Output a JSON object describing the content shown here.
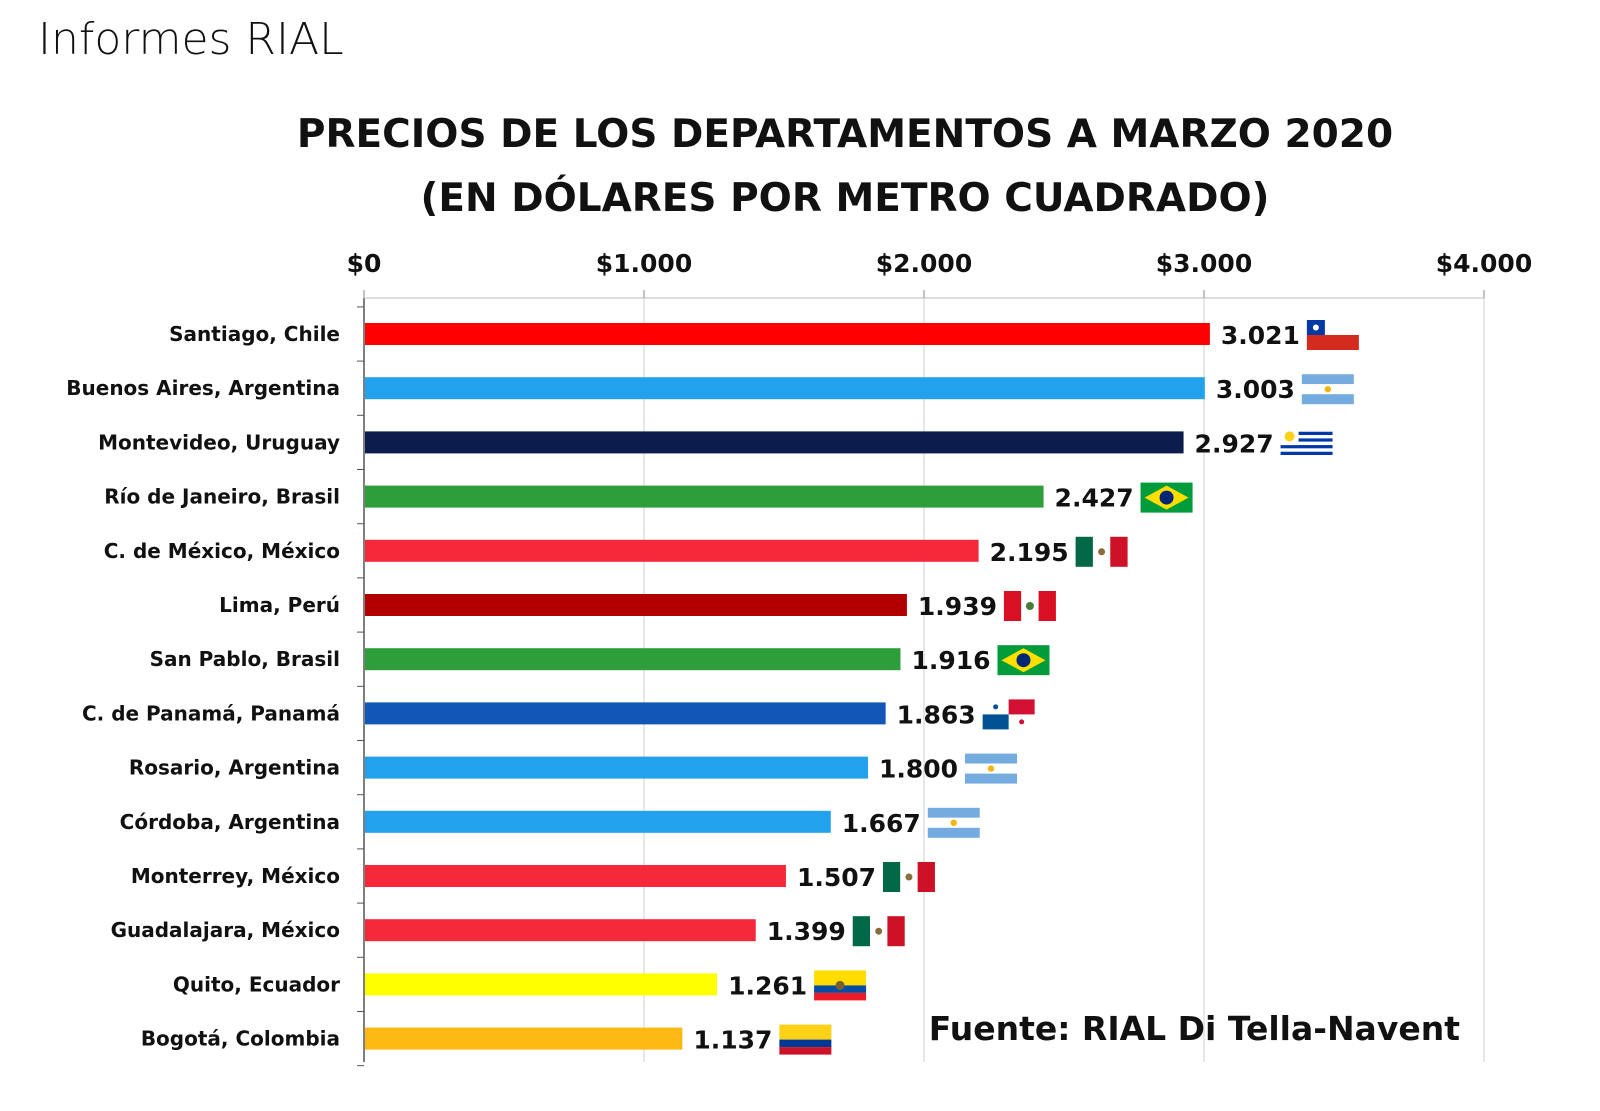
{
  "header": {
    "brand": "Informes RIAL"
  },
  "chart_data": {
    "type": "bar",
    "orientation": "horizontal",
    "title": "PRECIOS DE LOS DEPARTAMENTOS A MARZO 2020",
    "subtitle": "(EN DÓLARES POR METRO CUADRADO)",
    "xlim": [
      0,
      4000
    ],
    "x_ticks": [
      0,
      1000,
      2000,
      3000,
      4000
    ],
    "x_tick_labels": [
      "$0",
      "$1.000",
      "$2.000",
      "$3.000",
      "$4.000"
    ],
    "x_axis_position": "top",
    "categories": [
      "Santiago, Chile",
      "Buenos Aires, Argentina",
      "Montevideo, Uruguay",
      "Río de Janeiro, Brasil",
      "C. de México, México",
      "Lima, Perú",
      "San Pablo, Brasil",
      "C. de Panamá, Panamá",
      "Rosario, Argentina",
      "Córdoba, Argentina",
      "Monterrey, México",
      "Guadalajara, México",
      "Quito, Ecuador",
      "Bogotá, Colombia"
    ],
    "values": [
      3021,
      3003,
      2927,
      2427,
      2195,
      1939,
      1916,
      1863,
      1800,
      1667,
      1507,
      1399,
      1261,
      1137
    ],
    "value_labels": [
      "3.021",
      "3.003",
      "2.927",
      "2.427",
      "2.195",
      "1.939",
      "1.916",
      "1.863",
      "1.800",
      "1.667",
      "1.507",
      "1.399",
      "1.261",
      "1.137"
    ],
    "bar_colors": [
      "#ff0000",
      "#22a2ec",
      "#0c1d4d",
      "#2e9e3a",
      "#f5293a",
      "#b20000",
      "#2e9e3a",
      "#1257b8",
      "#22a2ec",
      "#22a2ec",
      "#f5293a",
      "#f5293a",
      "#ffff00",
      "#fdb813"
    ],
    "flags": [
      "chile-flag-icon",
      "argentina-flag-icon",
      "uruguay-flag-icon",
      "brazil-flag-icon",
      "mexico-flag-icon",
      "peru-flag-icon",
      "brazil-flag-icon",
      "panama-flag-icon",
      "argentina-flag-icon",
      "argentina-flag-icon",
      "mexico-flag-icon",
      "mexico-flag-icon",
      "ecuador-flag-icon",
      "colombia-flag-icon"
    ],
    "gridlines": true,
    "annotation": "Fuente: RIAL Di Tella-Navent"
  }
}
